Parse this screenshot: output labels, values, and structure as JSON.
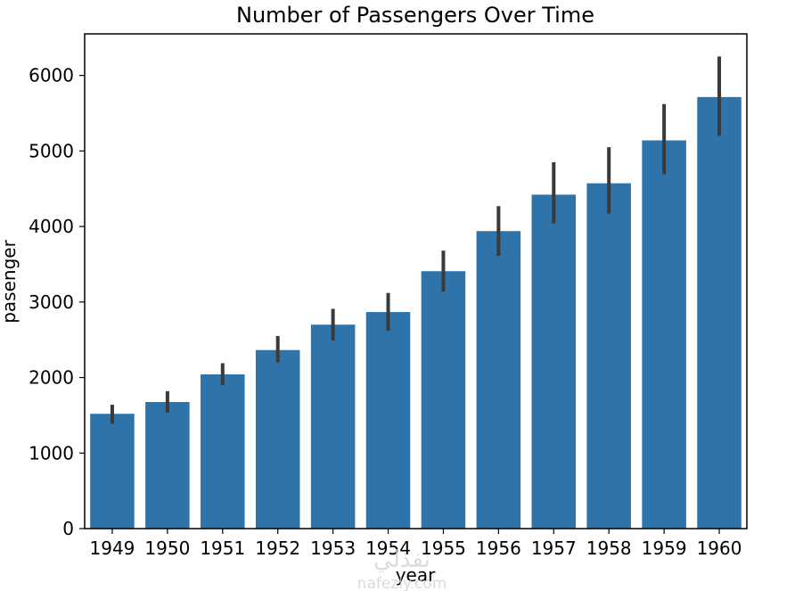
{
  "chart_data": {
    "type": "bar",
    "title": "Number of Passengers Over Time",
    "xlabel": "year",
    "ylabel": "pasenger",
    "categories": [
      "1949",
      "1950",
      "1951",
      "1952",
      "1953",
      "1954",
      "1955",
      "1956",
      "1957",
      "1958",
      "1959",
      "1960"
    ],
    "values": [
      1520,
      1676,
      2042,
      2364,
      2700,
      2867,
      3408,
      3939,
      4421,
      4572,
      5140,
      5714
    ],
    "error_low": [
      1385,
      1535,
      1900,
      2200,
      2490,
      2620,
      3140,
      3610,
      4040,
      4170,
      4690,
      5200
    ],
    "error_high": [
      1640,
      1820,
      2190,
      2550,
      2910,
      3120,
      3680,
      4270,
      4850,
      5050,
      5620,
      6250
    ],
    "ylim": [
      0,
      6550
    ],
    "yticks": [
      0,
      1000,
      2000,
      3000,
      4000,
      5000,
      6000
    ],
    "grid": false,
    "colors": {
      "bar": "#2e74ab",
      "error_bar": "#3a3a3a",
      "axis": "#000000"
    }
  },
  "watermark": {
    "logo_text": "نفذلي",
    "site": "nafezly.com"
  }
}
